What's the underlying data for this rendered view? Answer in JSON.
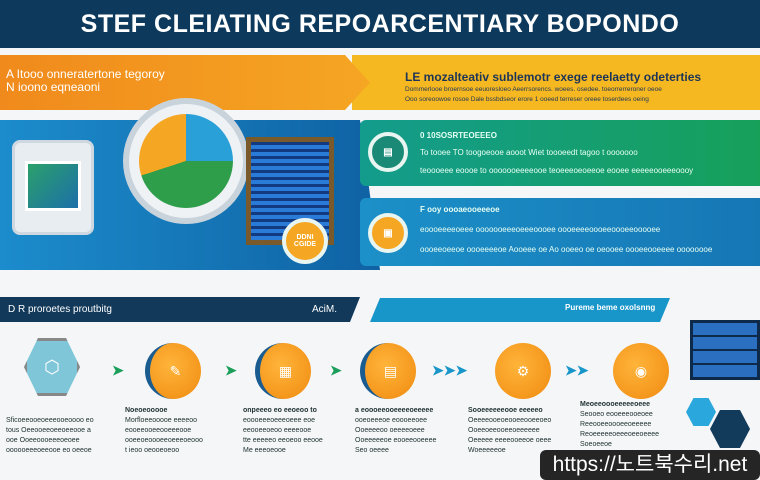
{
  "header": {
    "title": "STEF CLEIATING REPOARCENTIARY BOPONDO"
  },
  "banner": {
    "left_lines": [
      "A Itooo onneratertone tegoroy",
      "N ioono eqneaoni"
    ],
    "right_title": "LE mozalteativ sublemotr exege reelaetty odeterties",
    "right_lines": [
      "Dommerlooe broernsoe eeuoresloeo Aeerrsorencs. woees. osedee. toeorrerreroner oeoe",
      "Ooo soreoowoe rosoe Dale bssbdseor erore 1 ooeed terreser oreee toserdees oeing"
    ]
  },
  "panels": [
    {
      "heading": "0 10SOSRTEOEEEO",
      "lines": [
        "To tooee TO toogoeooe aooot Wiet toooeedt tagoo t ooooooo",
        "teoooeee eoooe to ooooooeeeeooe teoeeeoeoeeoe eooee eeeeeooeeeoooy"
      ],
      "icon": "document-icon",
      "color": "#17a05a"
    },
    {
      "heading": "F ooy oooaeooeeeoe",
      "lines": [
        "eoooeeeeoeee ooooooeeeoeeeoooee oooeeeeoooeeoooeeooooee",
        "oooeeoeeoe oooeeeeoe Aooeee oe Ao ooeeo oe oeooee oooeeooeeee oooooooe"
      ],
      "icon": "folder-icon",
      "color": "#f5a623"
    }
  ],
  "illustration": {
    "badge": "DDNI CGIDE"
  },
  "process": {
    "title": "D R proroetes proutbitg",
    "tag": "AciM.",
    "right_label": "Pureme beme oxolsnng"
  },
  "steps": [
    {
      "icon": "shield-icon",
      "glyph": "⬡",
      "heading": "",
      "lines": [
        "Sficoeeooeoeeeooeoooo eo",
        "tous Oeeooeeoeeoeeooe a",
        "ooe Ooeeoooeeeoeoee",
        "oooooeeeoeeooe eo oeeoe"
      ]
    },
    {
      "icon": "document-icon",
      "glyph": "✎",
      "heading": "Noeoeooooe",
      "lines": [
        "Morfloeeooooe eeeeoo",
        "eooeeooeeooeeeooe",
        "ooeeoeoooeeoeeeoeooo",
        "t ieoo oeooeoeoo"
      ]
    },
    {
      "icon": "chart-icon",
      "glyph": "▦",
      "heading": "onpeeeo eo eeoeoo to",
      "lines": [
        "eoooeeeoeeeoeee eoe",
        "eeooeeoeoo eeeeooe",
        "tte eeeeeo eeoeoo eeooe",
        "Me eeeoeooe"
      ]
    },
    {
      "icon": "report-icon",
      "glyph": "▤",
      "heading": "a eoooeeooeeeeoeeeee",
      "lines": [
        "ooeoeeeoe eoooeeoee",
        "Ooeeeeoo oeeeeoeee",
        "Ooeeeeeoe eooeeooeeee",
        "Seo oeeee"
      ]
    },
    {
      "icon": "gear-icon",
      "glyph": "⚙",
      "heading": "Sooeeeeeeooe eeeeeo",
      "lines": [
        "Oeeeeooeoeooeeooeeoeo",
        "Ooeeoeeooeeoeeeeee",
        "Oeeeee eeeeooeeoe oeee",
        "Woeeeeeoe"
      ]
    },
    {
      "icon": "server-icon",
      "glyph": "◉",
      "heading": "Meoeeoooeeeeeoeee",
      "lines": [
        "Seooeo eooeeeooeoee",
        "Reeooeeoooeeoeeeee",
        "Reoeeeeeoeeeoeeoeeee",
        "Soeoeeoe"
      ]
    }
  ],
  "watermark": "https://노트북수리.net",
  "colors": {
    "navy": "#0d3a5c",
    "orange": "#f08a1c",
    "yellow": "#f6b820",
    "green": "#17a05a",
    "blue": "#1895c9"
  }
}
